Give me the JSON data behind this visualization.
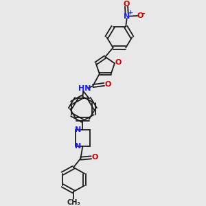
{
  "background_color": "#e8e8e8",
  "figsize": [
    3.0,
    3.0
  ],
  "dpi": 100,
  "bond_color": "#1a1a1a",
  "bond_lw": 1.3,
  "N_color": "#1a1aff",
  "O_color": "#cc0000",
  "label_fontsize": 8.0,
  "label_fontsize_small": 7.0,
  "xlim": [
    0,
    10
  ],
  "ylim": [
    0,
    10
  ]
}
